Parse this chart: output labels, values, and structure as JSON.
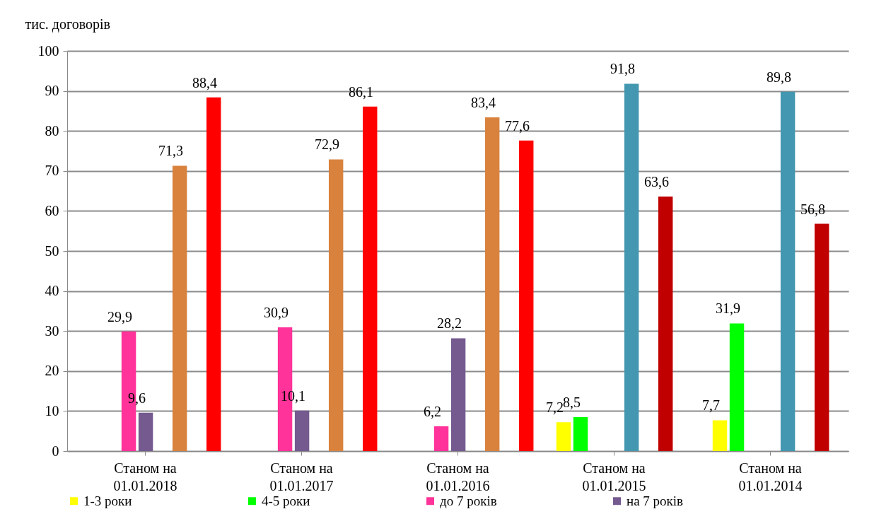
{
  "chart_data": {
    "type": "bar",
    "ylabel": "тис. договорів",
    "categories": [
      "Станом на 01.01.2018",
      "Станом на 01.01.2017",
      "Станом на 01.01.2016",
      "Станом на 01.01.2015",
      "Станом на 01.01.2014"
    ],
    "series": [
      {
        "name": "1-3 роки",
        "color": "#ffff00",
        "values": [
          null,
          null,
          null,
          7.2,
          7.7
        ],
        "value_labels": [
          null,
          null,
          null,
          "7,2",
          "7,7"
        ]
      },
      {
        "name": "4-5 роки",
        "color": "#00ff00",
        "values": [
          null,
          null,
          null,
          8.5,
          31.9
        ],
        "value_labels": [
          null,
          null,
          null,
          "8,5",
          "31,9"
        ]
      },
      {
        "name": "до 7 років",
        "color": "#ff3399",
        "values": [
          29.9,
          30.9,
          6.2,
          null,
          null
        ],
        "value_labels": [
          "29,9",
          "30,9",
          "6,2",
          null,
          null
        ]
      },
      {
        "name": "на 7 років",
        "color": "#745a8f",
        "values": [
          9.6,
          10.1,
          28.2,
          null,
          null
        ],
        "value_labels": [
          "9,6",
          "10,1",
          "28,2",
          null,
          null
        ]
      },
      {
        "color": "#4397b0",
        "values": [
          null,
          null,
          null,
          91.8,
          89.8
        ],
        "value_labels": [
          null,
          null,
          null,
          "91,8",
          "89,8"
        ]
      },
      {
        "color": "#d8823e",
        "values": [
          71.3,
          72.9,
          83.4,
          null,
          null
        ],
        "value_labels": [
          "71,3",
          "72,9",
          "83,4",
          null,
          null
        ]
      },
      {
        "color": "#c00000",
        "values": [
          null,
          null,
          null,
          63.6,
          56.8
        ],
        "value_labels": [
          null,
          null,
          null,
          "63,6",
          "56,8"
        ]
      },
      {
        "color": "#ff0000",
        "values": [
          88.4,
          86.1,
          77.6,
          null,
          null
        ],
        "value_labels": [
          "88,4",
          "86,1",
          "77,6",
          null,
          null
        ]
      }
    ],
    "ylim": [
      0,
      100
    ],
    "yticks": [
      0,
      10,
      20,
      30,
      40,
      50,
      60,
      70,
      80,
      90,
      100
    ],
    "grid": "y",
    "legend": "bottom"
  }
}
